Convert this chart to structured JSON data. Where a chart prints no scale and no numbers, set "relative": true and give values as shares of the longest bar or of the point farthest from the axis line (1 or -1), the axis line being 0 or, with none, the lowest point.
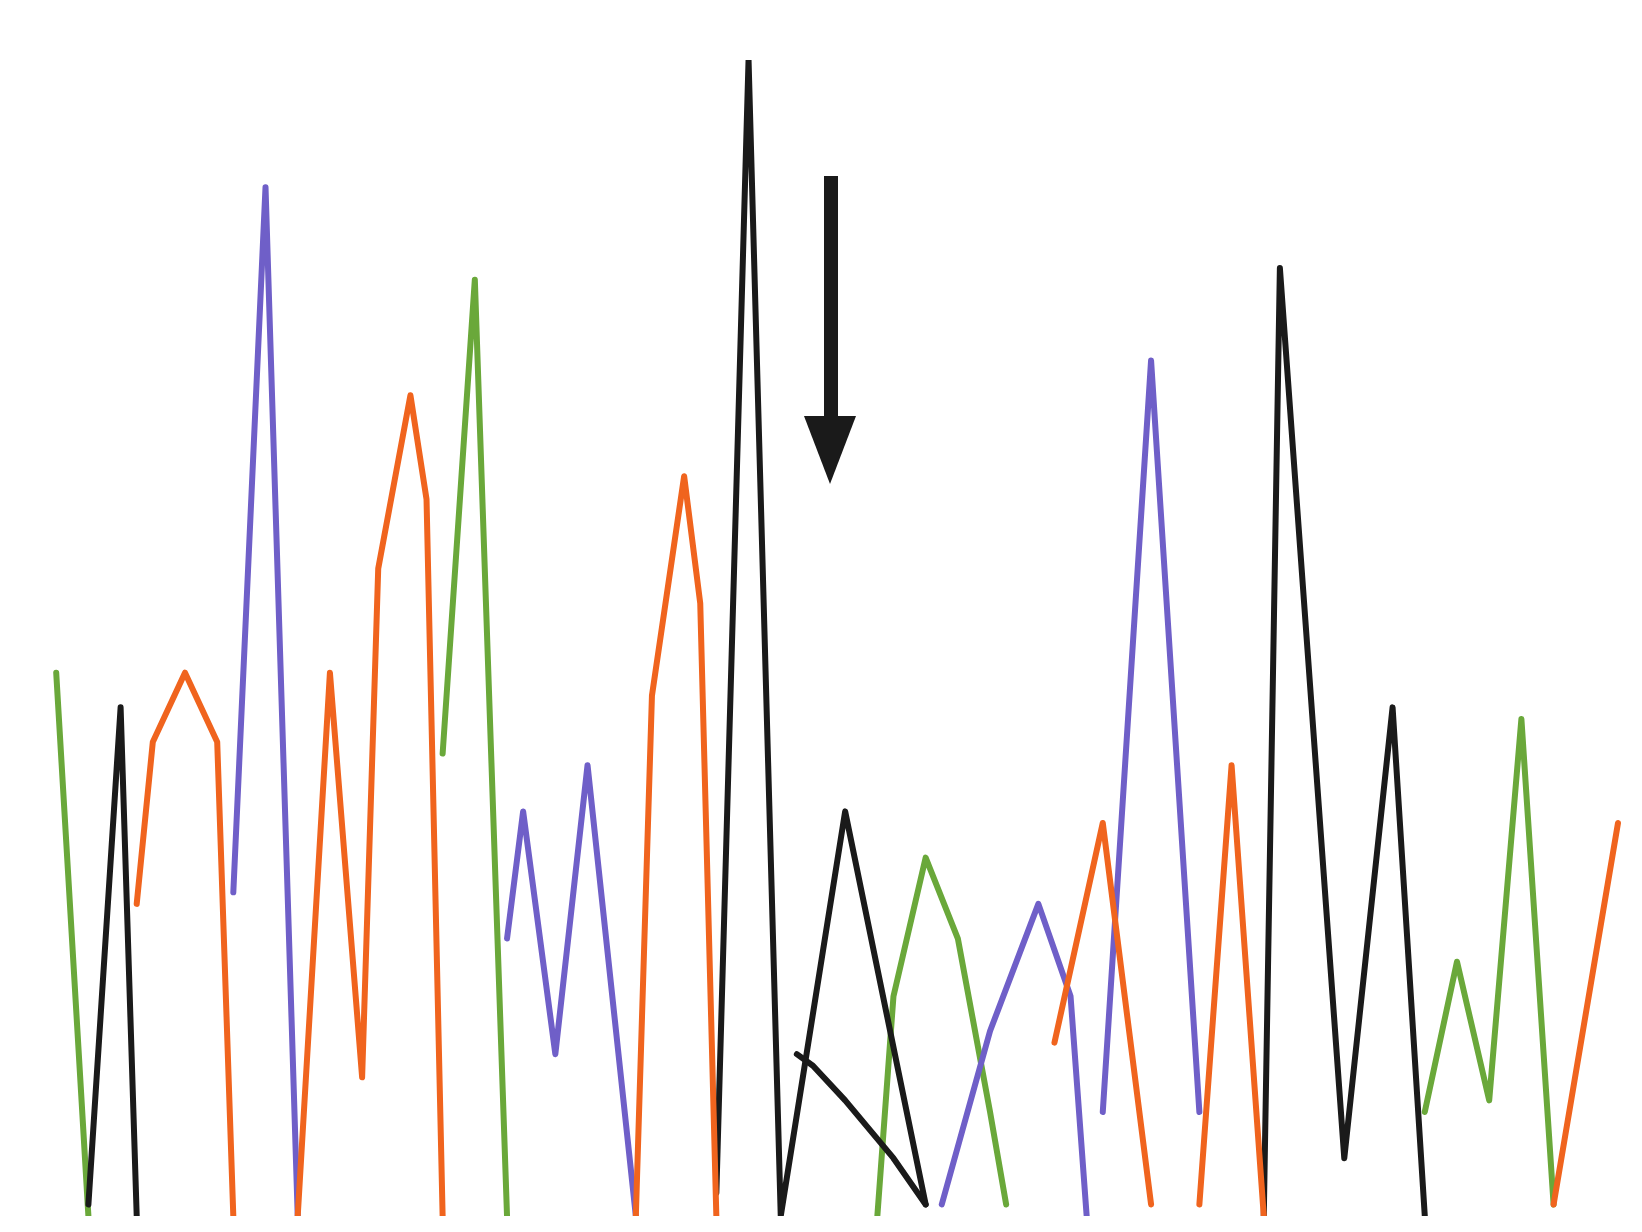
{
  "chart_data": {
    "type": "line",
    "relative": true,
    "grid": false,
    "legend": false,
    "marker": "none",
    "line_style": "solid",
    "tick_labels": false,
    "categories": [
      null,
      null,
      null,
      null,
      null,
      null,
      null,
      null,
      null,
      null,
      null,
      null,
      null,
      null,
      null,
      null,
      null,
      null,
      null,
      null,
      null,
      null,
      null,
      null,
      null,
      null,
      null,
      null,
      null,
      null,
      null,
      null,
      null,
      null,
      null,
      null,
      null,
      null,
      null,
      null,
      null,
      null,
      null,
      null,
      null,
      null,
      null,
      null,
      null,
      null,
      null,
      null,
      null,
      null,
      null,
      null,
      null,
      null,
      null,
      null,
      null,
      null,
      null,
      null,
      null,
      null,
      null,
      null,
      null,
      null,
      null,
      null,
      null,
      null,
      null,
      null,
      null,
      null,
      null,
      null,
      null,
      null,
      null,
      null,
      null,
      null,
      null,
      null,
      null,
      null,
      null,
      null,
      null,
      null,
      null,
      null,
      null,
      null,
      null,
      null
    ],
    "series": [
      {
        "color": "#6aa83a",
        "values": [
          null,
          null,
          0.47,
          null,
          0,
          null,
          null,
          null,
          null,
          null,
          null,
          null,
          null,
          null,
          null,
          null,
          null,
          null,
          null,
          null,
          null,
          null,
          null,
          null,
          null,
          null,
          null,
          null,
          null,
          null,
          null,
          null,
          null,
          null,
          null,
          null,
          null,
          null,
          null,
          null,
          null,
          null,
          null,
          null,
          null,
          null,
          null,
          null,
          null,
          null,
          null,
          null,
          null,
          null,
          null,
          null,
          null,
          null,
          null,
          null,
          null,
          null,
          null,
          null,
          null,
          null,
          null,
          null,
          null,
          null,
          null,
          null,
          null,
          null,
          null,
          null,
          null,
          null,
          null,
          null,
          null,
          null,
          null,
          null,
          null,
          null,
          null,
          null,
          null,
          null,
          null,
          null,
          null,
          null,
          null,
          null,
          null,
          null,
          null,
          null
        ]
      },
      {
        "color": "#6aa83a",
        "values": [
          null,
          null,
          null,
          null,
          null,
          null,
          null,
          null,
          null,
          null,
          null,
          null,
          null,
          null,
          null,
          null,
          null,
          null,
          null,
          null,
          null,
          null,
          null,
          null,
          null,
          null,
          0.4,
          null,
          0.81,
          null,
          0,
          null,
          null,
          null,
          null,
          null,
          null,
          null,
          null,
          null,
          null,
          null,
          null,
          null,
          null,
          null,
          null,
          null,
          null,
          null,
          null,
          null,
          null,
          null,
          null,
          null,
          null,
          null,
          null,
          null,
          null,
          null,
          null,
          null,
          null,
          null,
          null,
          null,
          null,
          null,
          null,
          null,
          null,
          null,
          null,
          null,
          null,
          null,
          null,
          null,
          null,
          null,
          null,
          null,
          null,
          null,
          null,
          null,
          null,
          null,
          null,
          null,
          null,
          null,
          null,
          null,
          null,
          null,
          null,
          null
        ]
      },
      {
        "color": "#6aa83a",
        "values": [
          null,
          null,
          null,
          null,
          null,
          null,
          null,
          null,
          null,
          null,
          null,
          null,
          null,
          null,
          null,
          null,
          null,
          null,
          null,
          null,
          null,
          null,
          null,
          null,
          null,
          null,
          null,
          null,
          null,
          null,
          null,
          null,
          null,
          null,
          null,
          null,
          null,
          null,
          null,
          null,
          null,
          null,
          null,
          null,
          null,
          null,
          null,
          null,
          null,
          null,
          null,
          null,
          null,
          0,
          0.19,
          null,
          0.31,
          null,
          0.24,
          null,
          0.09,
          0.01,
          null,
          null,
          null,
          null,
          null,
          null,
          null,
          null,
          null,
          null,
          null,
          null,
          null,
          null,
          null,
          null,
          null,
          null,
          null,
          null,
          null,
          null,
          null,
          null,
          null,
          null,
          null,
          null,
          null,
          null,
          null,
          null,
          null,
          null,
          null,
          null,
          null,
          null
        ]
      },
      {
        "color": "#6aa83a",
        "values": [
          null,
          null,
          null,
          null,
          null,
          null,
          null,
          null,
          null,
          null,
          null,
          null,
          null,
          null,
          null,
          null,
          null,
          null,
          null,
          null,
          null,
          null,
          null,
          null,
          null,
          null,
          null,
          null,
          null,
          null,
          null,
          null,
          null,
          null,
          null,
          null,
          null,
          null,
          null,
          null,
          null,
          null,
          null,
          null,
          null,
          null,
          null,
          null,
          null,
          null,
          null,
          null,
          null,
          null,
          null,
          null,
          null,
          null,
          null,
          null,
          null,
          null,
          null,
          null,
          null,
          null,
          null,
          null,
          null,
          null,
          null,
          null,
          null,
          null,
          null,
          null,
          null,
          null,
          null,
          null,
          null,
          null,
          null,
          null,
          null,
          null,
          null,
          0.09,
          null,
          0.22,
          null,
          0.1,
          null,
          0.43,
          null,
          0.01,
          null,
          null,
          null,
          null
        ]
      },
      {
        "color": "#1a1a1a",
        "values": [
          null,
          null,
          null,
          null,
          0.01,
          null,
          0.44,
          0,
          null,
          null,
          null,
          null,
          null,
          null,
          null,
          null,
          null,
          null,
          null,
          null,
          null,
          null,
          null,
          null,
          null,
          null,
          null,
          null,
          null,
          null,
          null,
          null,
          null,
          null,
          null,
          null,
          null,
          null,
          null,
          null,
          null,
          null,
          null,
          null,
          null,
          null,
          null,
          null,
          null,
          null,
          null,
          null,
          null,
          null,
          null,
          null,
          null,
          null,
          null,
          null,
          null,
          null,
          null,
          null,
          null,
          null,
          null,
          null,
          null,
          null,
          null,
          null,
          null,
          null,
          null,
          null,
          null,
          null,
          null,
          null,
          null,
          null,
          null,
          null,
          null,
          null,
          null,
          null,
          null,
          null,
          null,
          null,
          null,
          null,
          null,
          null,
          null,
          null,
          null,
          null
        ]
      },
      {
        "color": "#1a1a1a",
        "values": [
          null,
          null,
          null,
          null,
          null,
          null,
          null,
          null,
          null,
          null,
          null,
          null,
          null,
          null,
          null,
          null,
          null,
          null,
          null,
          null,
          null,
          null,
          null,
          null,
          null,
          null,
          null,
          null,
          null,
          null,
          null,
          null,
          null,
          null,
          null,
          null,
          null,
          null,
          null,
          null,
          null,
          null,
          null,
          0.02,
          null,
          1,
          null,
          0,
          null,
          null,
          null,
          0.35,
          null,
          null,
          null,
          null,
          0.01,
          null,
          null,
          null,
          null,
          null,
          null,
          null,
          null,
          null,
          null,
          null,
          null,
          null,
          null,
          null,
          null,
          null,
          null,
          null,
          null,
          null,
          null,
          null,
          null,
          null,
          null,
          null,
          null,
          null,
          null,
          null,
          null,
          null,
          null,
          null,
          null,
          null,
          null,
          null,
          null,
          null,
          null,
          null
        ]
      },
      {
        "color": "#1a1a1a",
        "values": [
          null,
          null,
          null,
          null,
          null,
          null,
          null,
          null,
          null,
          null,
          null,
          null,
          null,
          null,
          null,
          null,
          null,
          null,
          null,
          null,
          null,
          null,
          null,
          null,
          null,
          null,
          null,
          null,
          null,
          null,
          null,
          null,
          null,
          null,
          null,
          null,
          null,
          null,
          null,
          null,
          null,
          null,
          null,
          null,
          null,
          null,
          null,
          null,
          0.14,
          0.13,
          null,
          0.1,
          null,
          null,
          0.05,
          null,
          0.01,
          null,
          null,
          null,
          null,
          null,
          null,
          null,
          null,
          null,
          null,
          null,
          null,
          null,
          null,
          null,
          null,
          null,
          null,
          null,
          null,
          null,
          null,
          null,
          null,
          null,
          null,
          null,
          null,
          null,
          null,
          null,
          null,
          null,
          null,
          null,
          null,
          null,
          null,
          null,
          null,
          null,
          null,
          null
        ]
      },
      {
        "color": "#1a1a1a",
        "values": [
          null,
          null,
          null,
          null,
          null,
          null,
          null,
          null,
          null,
          null,
          null,
          null,
          null,
          null,
          null,
          null,
          null,
          null,
          null,
          null,
          null,
          null,
          null,
          null,
          null,
          null,
          null,
          null,
          null,
          null,
          null,
          null,
          null,
          null,
          null,
          null,
          null,
          null,
          null,
          null,
          null,
          null,
          null,
          null,
          null,
          null,
          null,
          null,
          null,
          null,
          null,
          null,
          null,
          null,
          null,
          null,
          null,
          null,
          null,
          null,
          null,
          null,
          null,
          null,
          null,
          null,
          null,
          null,
          null,
          null,
          null,
          null,
          null,
          null,
          null,
          null,
          null,
          0,
          0.82,
          null,
          null,
          null,
          0.05,
          null,
          null,
          0.44,
          null,
          0,
          null,
          null,
          null,
          null,
          null,
          null,
          null,
          null,
          null,
          null,
          null,
          null
        ]
      },
      {
        "color": "#6f5fc8",
        "values": [
          null,
          null,
          null,
          null,
          null,
          null,
          null,
          null,
          null,
          null,
          null,
          null,
          null,
          0.28,
          null,
          0.89,
          null,
          0,
          null,
          null,
          null,
          null,
          null,
          null,
          null,
          null,
          null,
          null,
          null,
          null,
          null,
          null,
          null,
          null,
          null,
          null,
          null,
          null,
          null,
          null,
          null,
          null,
          null,
          null,
          null,
          null,
          null,
          null,
          null,
          null,
          null,
          null,
          null,
          null,
          null,
          null,
          null,
          null,
          null,
          null,
          null,
          null,
          null,
          null,
          null,
          null,
          null,
          null,
          null,
          null,
          null,
          null,
          null,
          null,
          null,
          null,
          null,
          null,
          null,
          null,
          null,
          null,
          null,
          null,
          null,
          null,
          null,
          null,
          null,
          null,
          null,
          null,
          null,
          null,
          null,
          null,
          null,
          null,
          null,
          null
        ]
      },
      {
        "color": "#6f5fc8",
        "values": [
          null,
          null,
          null,
          null,
          null,
          null,
          null,
          null,
          null,
          null,
          null,
          null,
          null,
          null,
          null,
          null,
          null,
          null,
          null,
          null,
          null,
          null,
          null,
          null,
          null,
          null,
          null,
          null,
          null,
          null,
          0.24,
          0.35,
          null,
          0.14,
          null,
          0.39,
          null,
          null,
          0,
          null,
          null,
          null,
          null,
          null,
          null,
          null,
          null,
          null,
          null,
          null,
          null,
          null,
          null,
          null,
          null,
          null,
          null,
          null,
          null,
          null,
          null,
          null,
          null,
          null,
          null,
          null,
          null,
          null,
          null,
          null,
          null,
          null,
          null,
          null,
          null,
          null,
          null,
          null,
          null,
          null,
          null,
          null,
          null,
          null,
          null,
          null,
          null,
          null,
          null,
          null,
          null,
          null,
          null,
          null,
          null,
          null,
          null,
          null,
          null,
          null
        ]
      },
      {
        "color": "#6f5fc8",
        "values": [
          null,
          null,
          null,
          null,
          null,
          null,
          null,
          null,
          null,
          null,
          null,
          null,
          null,
          null,
          null,
          null,
          null,
          null,
          null,
          null,
          null,
          null,
          null,
          null,
          null,
          null,
          null,
          null,
          null,
          null,
          null,
          null,
          null,
          null,
          null,
          null,
          null,
          null,
          null,
          null,
          null,
          null,
          null,
          null,
          null,
          null,
          null,
          null,
          null,
          null,
          null,
          null,
          null,
          null,
          null,
          null,
          null,
          0.01,
          null,
          null,
          0.16,
          null,
          null,
          0.27,
          null,
          0.19,
          0,
          null,
          null,
          null,
          null,
          null,
          null,
          null,
          null,
          null,
          null,
          null,
          null,
          null,
          null,
          null,
          null,
          null,
          null,
          null,
          null,
          null,
          null,
          null,
          null,
          null,
          null,
          null,
          null,
          null,
          null,
          null,
          null,
          null
        ]
      },
      {
        "color": "#6f5fc8",
        "values": [
          null,
          null,
          null,
          null,
          null,
          null,
          null,
          null,
          null,
          null,
          null,
          null,
          null,
          null,
          null,
          null,
          null,
          null,
          null,
          null,
          null,
          null,
          null,
          null,
          null,
          null,
          null,
          null,
          null,
          null,
          null,
          null,
          null,
          null,
          null,
          null,
          null,
          null,
          null,
          null,
          null,
          null,
          null,
          null,
          null,
          null,
          null,
          null,
          null,
          null,
          null,
          null,
          null,
          null,
          null,
          null,
          null,
          null,
          null,
          null,
          null,
          null,
          null,
          null,
          null,
          null,
          null,
          0.09,
          null,
          null,
          0.74,
          null,
          null,
          0.09,
          null,
          null,
          null,
          null,
          null,
          null,
          null,
          null,
          null,
          null,
          null,
          null,
          null,
          null,
          null,
          null,
          null,
          null,
          null,
          null,
          null,
          null,
          null,
          null,
          null,
          null
        ]
      },
      {
        "color": "#f0641e",
        "values": [
          null,
          null,
          null,
          null,
          null,
          null,
          null,
          0.27,
          0.41,
          null,
          0.47,
          null,
          0.41,
          0,
          null,
          null,
          null,
          null,
          null,
          null,
          null,
          null,
          null,
          null,
          null,
          null,
          null,
          null,
          null,
          null,
          null,
          null,
          null,
          null,
          null,
          null,
          null,
          null,
          null,
          null,
          null,
          null,
          null,
          null,
          null,
          null,
          null,
          null,
          null,
          null,
          null,
          null,
          null,
          null,
          null,
          null,
          null,
          null,
          null,
          null,
          null,
          null,
          null,
          null,
          null,
          null,
          null,
          null,
          null,
          null,
          null,
          null,
          null,
          null,
          null,
          null,
          null,
          null,
          null,
          null,
          null,
          null,
          null,
          null,
          null,
          null,
          null,
          null,
          null,
          null,
          null,
          null,
          null,
          null,
          null,
          null,
          null,
          null,
          null,
          null
        ]
      },
      {
        "color": "#f0641e",
        "values": [
          null,
          null,
          null,
          null,
          null,
          null,
          null,
          null,
          null,
          null,
          null,
          null,
          null,
          null,
          null,
          null,
          null,
          0,
          null,
          0.47,
          null,
          0.12,
          0.56,
          null,
          0.71,
          0.62,
          0,
          null,
          null,
          null,
          null,
          null,
          null,
          null,
          null,
          null,
          null,
          null,
          null,
          null,
          null,
          null,
          null,
          null,
          null,
          null,
          null,
          null,
          null,
          null,
          null,
          null,
          null,
          null,
          null,
          null,
          null,
          null,
          null,
          null,
          null,
          null,
          null,
          null,
          null,
          null,
          null,
          null,
          null,
          null,
          null,
          null,
          null,
          null,
          null,
          null,
          null,
          null,
          null,
          null,
          null,
          null,
          null,
          null,
          null,
          null,
          null,
          null,
          null,
          null,
          null,
          null,
          null,
          null,
          null,
          null,
          null,
          null,
          null,
          null
        ]
      },
      {
        "color": "#f0641e",
        "values": [
          null,
          null,
          null,
          null,
          null,
          null,
          null,
          null,
          null,
          null,
          null,
          null,
          null,
          null,
          null,
          null,
          null,
          null,
          null,
          null,
          null,
          null,
          null,
          null,
          null,
          null,
          null,
          null,
          null,
          null,
          null,
          null,
          null,
          null,
          null,
          null,
          null,
          null,
          0,
          0.45,
          null,
          0.64,
          0.53,
          0,
          null,
          null,
          null,
          null,
          null,
          null,
          null,
          null,
          null,
          null,
          null,
          null,
          null,
          null,
          null,
          null,
          null,
          null,
          null,
          null,
          null,
          null,
          null,
          null,
          null,
          null,
          null,
          null,
          null,
          null,
          null,
          null,
          null,
          null,
          null,
          null,
          null,
          null,
          null,
          null,
          null,
          null,
          null,
          null,
          null,
          null,
          null,
          null,
          null,
          null,
          null,
          null,
          null,
          null,
          null,
          null
        ]
      },
      {
        "color": "#f0641e",
        "values": [
          null,
          null,
          null,
          null,
          null,
          null,
          null,
          null,
          null,
          null,
          null,
          null,
          null,
          null,
          null,
          null,
          null,
          null,
          null,
          null,
          null,
          null,
          null,
          null,
          null,
          null,
          null,
          null,
          null,
          null,
          null,
          null,
          null,
          null,
          null,
          null,
          null,
          null,
          null,
          null,
          null,
          null,
          null,
          null,
          null,
          null,
          null,
          null,
          null,
          null,
          null,
          null,
          null,
          null,
          null,
          null,
          null,
          null,
          null,
          null,
          null,
          null,
          null,
          null,
          0.15,
          null,
          null,
          0.34,
          null,
          null,
          0.01,
          null,
          null,
          null,
          null,
          null,
          null,
          null,
          null,
          null,
          null,
          null,
          null,
          null,
          null,
          null,
          null,
          null,
          null,
          null,
          null,
          null,
          null,
          null,
          null,
          null,
          null,
          null,
          null,
          null
        ]
      },
      {
        "color": "#f0641e",
        "values": [
          null,
          null,
          null,
          null,
          null,
          null,
          null,
          null,
          null,
          null,
          null,
          null,
          null,
          null,
          null,
          null,
          null,
          null,
          null,
          null,
          null,
          null,
          null,
          null,
          null,
          null,
          null,
          null,
          null,
          null,
          null,
          null,
          null,
          null,
          null,
          null,
          null,
          null,
          null,
          null,
          null,
          null,
          null,
          null,
          null,
          null,
          null,
          null,
          null,
          null,
          null,
          null,
          null,
          null,
          null,
          null,
          null,
          null,
          null,
          null,
          null,
          null,
          null,
          null,
          null,
          null,
          null,
          null,
          null,
          null,
          null,
          null,
          null,
          0.01,
          null,
          0.39,
          null,
          0,
          null,
          null,
          null,
          null,
          null,
          null,
          null,
          null,
          null,
          null,
          null,
          null,
          null,
          null,
          null,
          null,
          null,
          null,
          null,
          null,
          null,
          null
        ]
      },
      {
        "color": "#f0641e",
        "values": [
          null,
          null,
          null,
          null,
          null,
          null,
          null,
          null,
          null,
          null,
          null,
          null,
          null,
          null,
          null,
          null,
          null,
          null,
          null,
          null,
          null,
          null,
          null,
          null,
          null,
          null,
          null,
          null,
          null,
          null,
          null,
          null,
          null,
          null,
          null,
          null,
          null,
          null,
          null,
          null,
          null,
          null,
          null,
          null,
          null,
          null,
          null,
          null,
          null,
          null,
          null,
          null,
          null,
          null,
          null,
          null,
          null,
          null,
          null,
          null,
          null,
          null,
          null,
          null,
          null,
          null,
          null,
          null,
          null,
          null,
          null,
          null,
          null,
          null,
          null,
          null,
          null,
          null,
          null,
          null,
          null,
          null,
          null,
          null,
          null,
          null,
          null,
          null,
          null,
          null,
          null,
          null,
          null,
          null,
          null,
          0.01,
          null,
          null,
          null,
          0.34
        ]
      }
    ]
  }
}
